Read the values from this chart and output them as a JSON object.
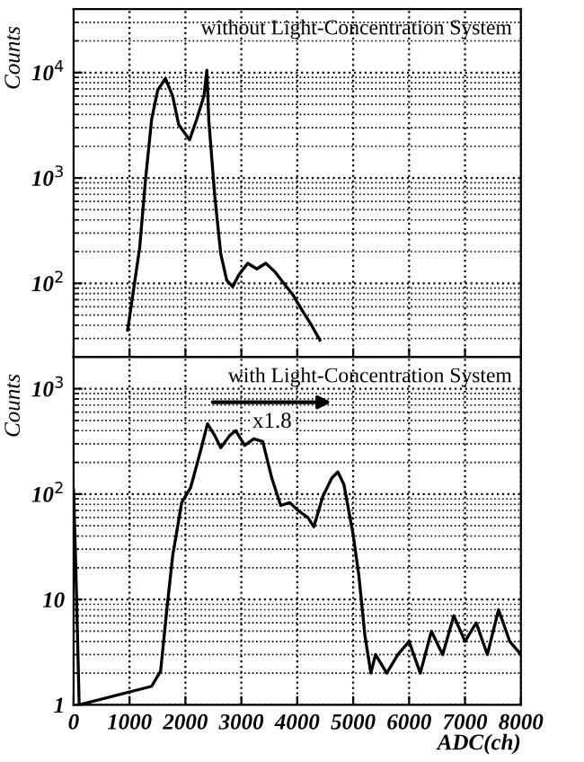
{
  "chart_data": [
    {
      "type": "line",
      "title": "without Light-Concentration System",
      "ylabel": "Counts",
      "log": "y",
      "grid": true,
      "tick_labels": "y",
      "xlim": [
        0,
        8000
      ],
      "xticks": [
        0,
        1000,
        2000,
        3000,
        4000,
        5000,
        6000,
        7000,
        8000
      ],
      "ylim": [
        20,
        40000
      ],
      "yticks": [
        {
          "value": 100,
          "label": "10$^{2}$"
        },
        {
          "value": 1000,
          "label": "10$^{3}$"
        },
        {
          "value": 10000,
          "label": "10$^{4}$"
        }
      ],
      "series": [
        {
          "color": "#000000",
          "x": [
            967,
            1181,
            1289,
            1396,
            1504,
            1643,
            1772,
            1880,
            2073,
            2202,
            2331,
            2384,
            2417,
            2524,
            2632,
            2739,
            2846,
            2954,
            3115,
            3276,
            3437,
            3598,
            3759,
            3920,
            4082,
            4243,
            4404
          ],
          "values": [
            36,
            215,
            1000,
            3600,
            6800,
            8800,
            6000,
            3200,
            2300,
            3600,
            6000,
            10500,
            3600,
            680,
            190,
            107,
            93,
            120,
            155,
            137,
            155,
            129,
            100,
            78,
            56,
            41,
            29
          ]
        }
      ]
    },
    {
      "type": "line",
      "title": "with Light-Concentration System",
      "ylabel": "Counts",
      "xlabel": "ADC(ch)",
      "log": "y",
      "grid": true,
      "xlim": [
        0,
        8000
      ],
      "xticks": [
        0,
        1000,
        2000,
        3000,
        4000,
        5000,
        6000,
        7000,
        8000
      ],
      "ylim": [
        1,
        2000
      ],
      "yticks": [
        1,
        10,
        {
          "value": 100,
          "label": "10$^{2}$"
        },
        {
          "value": 1000,
          "label": "10$^{3}$"
        }
      ],
      "annotations": [
        {
          "text": "x1.8",
          "x": 3550,
          "y": 480
        }
      ],
      "series": [
        {
          "color": "#000000",
          "x": [
            0,
            40,
            100,
            1396,
            1557,
            1665,
            1772,
            1933,
            2095,
            2256,
            2395,
            2524,
            2632,
            2793,
            2900,
            3061,
            3222,
            3383,
            3544,
            3705,
            3866,
            4028,
            4189,
            4296,
            4457,
            4618,
            4726,
            4833,
            4994,
            5101,
            5209,
            5316,
            5400,
            5600,
            5800,
            6000,
            6200,
            6400,
            6600,
            6800,
            7000,
            7200,
            7400,
            7600,
            7800,
            8000
          ],
          "values": [
            110,
            20,
            1,
            1.5,
            2.1,
            7.8,
            26,
            83,
            116,
            240,
            465,
            360,
            275,
            360,
            400,
            290,
            335,
            315,
            142,
            78,
            83,
            69,
            60,
            49,
            95,
            142,
            162,
            124,
            43,
            17,
            4.6,
            2,
            3,
            2,
            3,
            4,
            2,
            5,
            3,
            7,
            4,
            6,
            3,
            8,
            4,
            3
          ]
        }
      ]
    }
  ]
}
